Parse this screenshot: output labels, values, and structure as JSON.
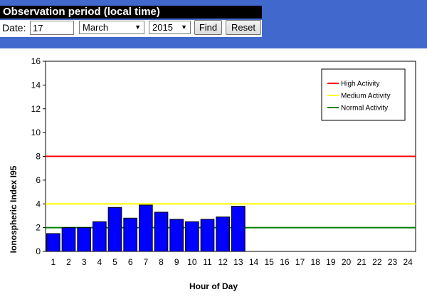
{
  "header": {
    "title": "Observation period (local time)",
    "date_label": "Date:",
    "day_value": "17",
    "month_value": "March",
    "year_value": "2015",
    "find_label": "Find",
    "reset_label": "Reset",
    "background_color": "#4169cd"
  },
  "chart_data": {
    "type": "bar",
    "xlabel": "Hour of Day",
    "ylabel": "Ionospheric Index I95",
    "categories": [
      "1",
      "2",
      "3",
      "4",
      "5",
      "6",
      "7",
      "8",
      "9",
      "10",
      "11",
      "12",
      "13",
      "14",
      "15",
      "16",
      "17",
      "18",
      "19",
      "20",
      "21",
      "22",
      "23",
      "24"
    ],
    "values": [
      1.5,
      2.0,
      2.0,
      2.5,
      3.7,
      2.8,
      3.9,
      3.3,
      2.7,
      2.5,
      2.7,
      2.9,
      3.8,
      null,
      null,
      null,
      null,
      null,
      null,
      null,
      null,
      null,
      null,
      null
    ],
    "ylim": [
      0,
      16
    ],
    "yticks": [
      0,
      2,
      4,
      6,
      8,
      10,
      12,
      14,
      16
    ],
    "bar_color": "#0000ff",
    "thresholds": [
      {
        "name": "High Activity",
        "value": 8,
        "color": "#ff0000"
      },
      {
        "name": "Medium Activity",
        "value": 4,
        "color": "#ffff00"
      },
      {
        "name": "Normal Activity",
        "value": 2,
        "color": "#008000"
      }
    ],
    "legend_position": "top-right",
    "grid": false
  }
}
